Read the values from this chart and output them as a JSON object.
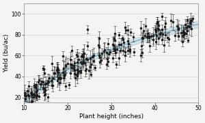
{
  "title": "",
  "xlabel": "Plant height (inches)",
  "ylabel": "Yield (bu/ac)",
  "xlim": [
    10,
    50
  ],
  "ylim": [
    15,
    110
  ],
  "xticks": [
    10,
    20,
    30,
    40,
    50
  ],
  "yticks": [
    20,
    40,
    60,
    80,
    100
  ],
  "bg_color": "#f5f4f2",
  "scatter_color": "#1a1a1a",
  "fit_color": "#7aafc0",
  "fit_ci_color": "#a8ccd8",
  "seed": 42,
  "n_points": 260,
  "a_fit": 55.0,
  "b_fit": -60.0,
  "noise_std": 7.5,
  "yerr_min": 2.0,
  "yerr_max": 8.0,
  "ci_base": 2.5,
  "figsize": [
    3.0,
    1.8
  ],
  "dpi": 100
}
